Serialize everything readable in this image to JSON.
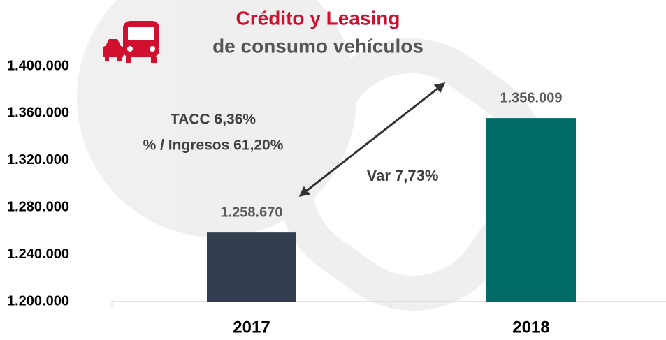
{
  "chart_data": {
    "type": "bar",
    "title": "Crédito y Leasing",
    "subtitle": "de consumo vehículos",
    "categories": [
      "2017",
      "2018"
    ],
    "series": [
      {
        "colors": [
          "#333f50",
          "#006b66"
        ],
        "values": [
          1258670,
          1356009
        ],
        "value_labels": [
          "1.258.670",
          "1.356.009"
        ]
      }
    ],
    "ylim": [
      1200000,
      1400000
    ],
    "yticks": [
      {
        "value": 1200000,
        "label": "1.200.000"
      },
      {
        "value": 1240000,
        "label": "1.240.000"
      },
      {
        "value": 1280000,
        "label": "1.280.000"
      },
      {
        "value": 1320000,
        "label": "1.320.000"
      },
      {
        "value": 1360000,
        "label": "1.360.000"
      },
      {
        "value": 1400000,
        "label": "1.400.000"
      }
    ],
    "grid": false,
    "annotations": [
      "TACC 6,36%",
      "% / Ingresos 61,20%",
      "Var 7,73%"
    ]
  }
}
